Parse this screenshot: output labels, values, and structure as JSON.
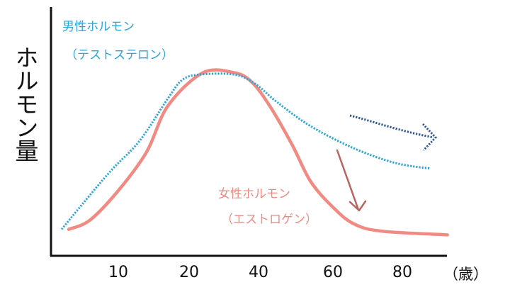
{
  "chart_data": {
    "type": "line",
    "title": "",
    "xlabel": "（歳）",
    "ylabel": "ホルモン量",
    "x_tick_labels": [
      "10",
      "20",
      "40",
      "60",
      "80"
    ],
    "y_ticks": "none",
    "grid": false,
    "y_units": "relative level (no scale printed)",
    "series": [
      {
        "name": "男性ホルモン（テストステロン）",
        "label_line1": "男性ホルモン",
        "label_line2": "（テストステロン）",
        "color": "#2aa5dc",
        "style": "dotted",
        "x": [
          2,
          5,
          9,
          13,
          17,
          19,
          23,
          33,
          39,
          45,
          54,
          66,
          78,
          88
        ],
        "y": [
          14,
          28,
          46,
          62,
          85,
          95,
          98,
          98,
          93,
          83,
          70,
          58,
          50,
          47
        ]
      },
      {
        "name": "女性ホルモン（エストロゲン）",
        "label_line1": "女性ホルモン",
        "label_line2": "（エストロゲン）",
        "color": "#f08a82",
        "style": "solid",
        "x": [
          3,
          6,
          10,
          14,
          17,
          24,
          33,
          38,
          43,
          49,
          54,
          60,
          66,
          74,
          93
        ],
        "y": [
          14,
          19,
          35,
          56,
          81,
          99,
          99,
          94,
          81,
          60,
          40,
          26,
          17,
          13,
          11
        ]
      }
    ],
    "annotations": [
      {
        "type": "arrow",
        "meaning": "gradual decline",
        "color": "#2e5597",
        "style": "dotted"
      },
      {
        "type": "arrow",
        "meaning": "sharp decline",
        "color": "#b86460",
        "style": "solid"
      }
    ]
  }
}
